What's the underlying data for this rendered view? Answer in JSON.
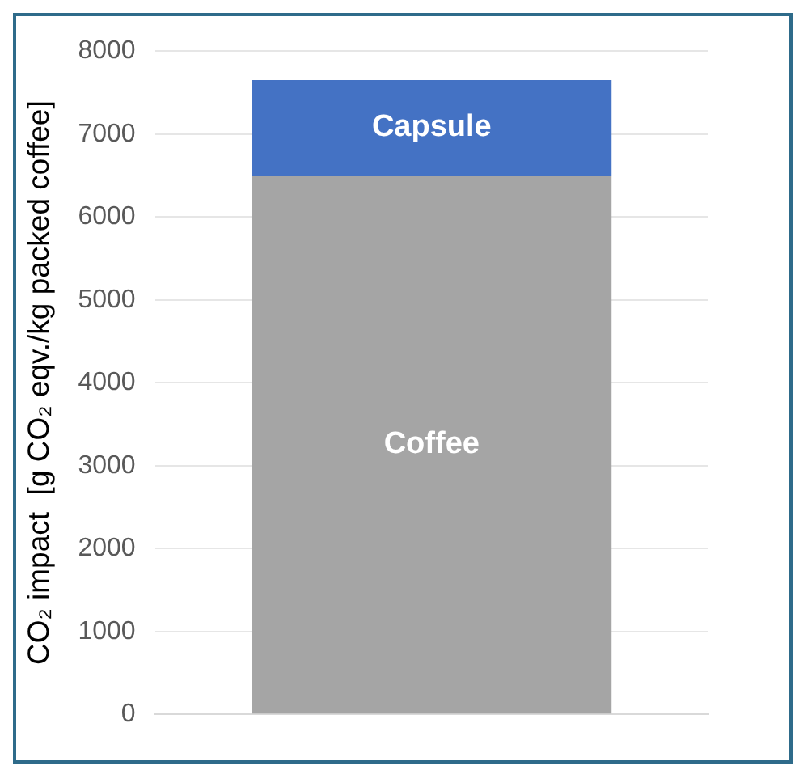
{
  "chart_data": {
    "type": "bar",
    "stacked": true,
    "ylabel": "CO₂ impact  [g CO₂ eqv./kg packed coffee]",
    "categories": [
      null
    ],
    "series": [
      {
        "name": "Coffee",
        "color": "#a5a5a5",
        "values": [
          6500
        ]
      },
      {
        "name": "Capsule",
        "color": "#4472c4",
        "values": [
          1150
        ]
      }
    ],
    "ylim": [
      0,
      8000
    ],
    "yticks": [
      0,
      1000,
      2000,
      3000,
      4000,
      5000,
      6000,
      7000,
      8000
    ],
    "grid": "y",
    "legend": false
  }
}
